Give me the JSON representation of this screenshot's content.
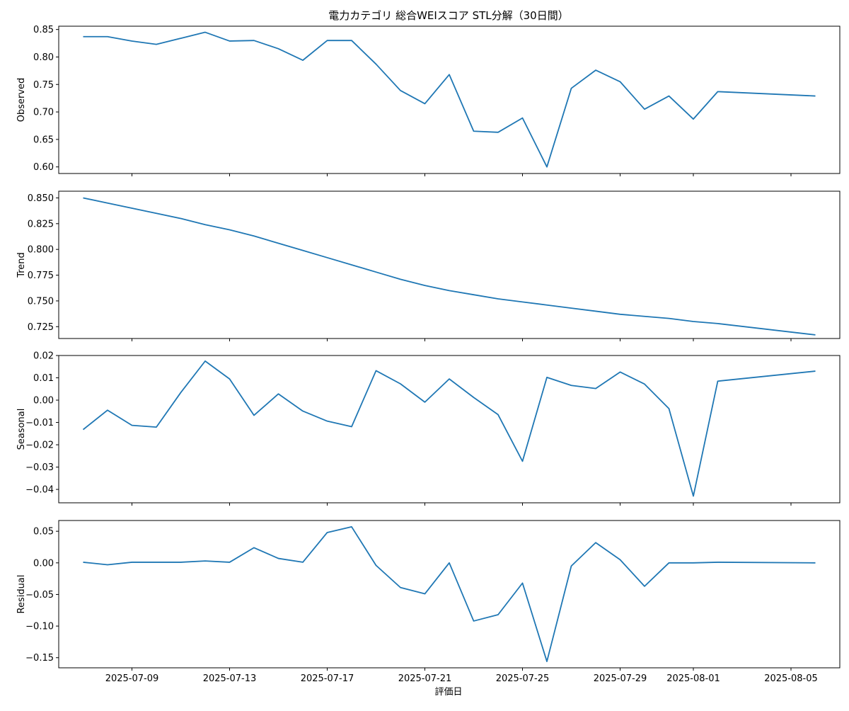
{
  "title": "電力カテゴリ 総合WEIスコア STL分解（30日間）",
  "colors": {
    "line": "#1f77b4",
    "axis": "#000000"
  },
  "chart_data": {
    "type": "line",
    "title": "電力カテゴリ 総合WEIスコア STL分解（30日間）",
    "xlabel": "評価日",
    "x_range": [
      "2025-07-06",
      "2025-08-07"
    ],
    "x_ticks": [
      "2025-07-09",
      "2025-07-13",
      "2025-07-17",
      "2025-07-21",
      "2025-07-25",
      "2025-07-29",
      "2025-08-01",
      "2025-08-05"
    ],
    "x": [
      "2025-07-07",
      "2025-07-08",
      "2025-07-09",
      "2025-07-10",
      "2025-07-11",
      "2025-07-12",
      "2025-07-13",
      "2025-07-14",
      "2025-07-15",
      "2025-07-16",
      "2025-07-17",
      "2025-07-18",
      "2025-07-19",
      "2025-07-20",
      "2025-07-21",
      "2025-07-22",
      "2025-07-23",
      "2025-07-24",
      "2025-07-25",
      "2025-07-26",
      "2025-07-27",
      "2025-07-28",
      "2025-07-29",
      "2025-07-30",
      "2025-07-31",
      "2025-08-01",
      "2025-08-02",
      "2025-08-06"
    ],
    "grid": false,
    "panels": [
      {
        "ylabel": "Observed",
        "ylim": [
          0.588,
          0.856
        ],
        "yticks": [
          "0.85",
          "0.80",
          "0.75",
          "0.70",
          "0.65",
          "0.60"
        ],
        "tick_values": [
          0.85,
          0.8,
          0.75,
          0.7,
          0.65,
          0.6
        ],
        "values": [
          0.837,
          0.837,
          0.829,
          0.823,
          0.834,
          0.845,
          0.829,
          0.83,
          0.815,
          0.794,
          0.83,
          0.83,
          0.787,
          0.739,
          0.715,
          0.768,
          0.665,
          0.663,
          0.689,
          0.6,
          0.743,
          0.776,
          0.755,
          0.705,
          0.729,
          0.687,
          0.737,
          0.729
        ]
      },
      {
        "ylabel": "Trend",
        "ylim": [
          0.7135,
          0.8565
        ],
        "yticks": [
          "0.850",
          "0.825",
          "0.800",
          "0.775",
          "0.750",
          "0.725"
        ],
        "tick_values": [
          0.85,
          0.825,
          0.8,
          0.775,
          0.75,
          0.725
        ],
        "values": [
          0.85,
          0.845,
          0.84,
          0.835,
          0.83,
          0.824,
          0.819,
          0.813,
          0.806,
          0.799,
          0.792,
          0.785,
          0.778,
          0.771,
          0.765,
          0.76,
          0.756,
          0.752,
          0.749,
          0.746,
          0.743,
          0.74,
          0.737,
          0.735,
          0.733,
          0.73,
          0.728,
          0.717
        ]
      },
      {
        "ylabel": "Seasonal",
        "ylim": [
          -0.046,
          0.02
        ],
        "yticks": [
          "0.02",
          "0.01",
          "0.00",
          "−0.01",
          "−0.02",
          "−0.03",
          "−0.04"
        ],
        "tick_values": [
          0.02,
          0.01,
          0.0,
          -0.01,
          -0.02,
          -0.03,
          -0.04
        ],
        "values": [
          -0.0132,
          -0.0045,
          -0.0113,
          -0.0121,
          0.0034,
          0.0175,
          0.0095,
          -0.0068,
          0.0028,
          -0.0049,
          -0.0094,
          -0.0119,
          0.0132,
          0.0073,
          -0.0009,
          0.0095,
          0.0012,
          -0.0065,
          -0.0274,
          0.0102,
          0.0066,
          0.0052,
          0.0126,
          0.0072,
          -0.0038,
          -0.043,
          0.0085,
          0.013
        ]
      },
      {
        "ylabel": "Residual",
        "ylim": [
          -0.166,
          0.067
        ],
        "yticks": [
          "0.05",
          "0.00",
          "−0.05",
          "−0.10",
          "−0.15"
        ],
        "tick_values": [
          0.05,
          0.0,
          -0.05,
          -0.1,
          -0.15
        ],
        "values": [
          0.001,
          -0.003,
          0.001,
          0.001,
          0.001,
          0.003,
          0.001,
          0.024,
          0.007,
          0.001,
          0.048,
          0.057,
          -0.004,
          -0.039,
          -0.049,
          0.0,
          -0.092,
          -0.082,
          -0.032,
          -0.156,
          -0.005,
          0.032,
          0.005,
          -0.037,
          0.0,
          0.0,
          0.001,
          0.0
        ]
      }
    ]
  }
}
